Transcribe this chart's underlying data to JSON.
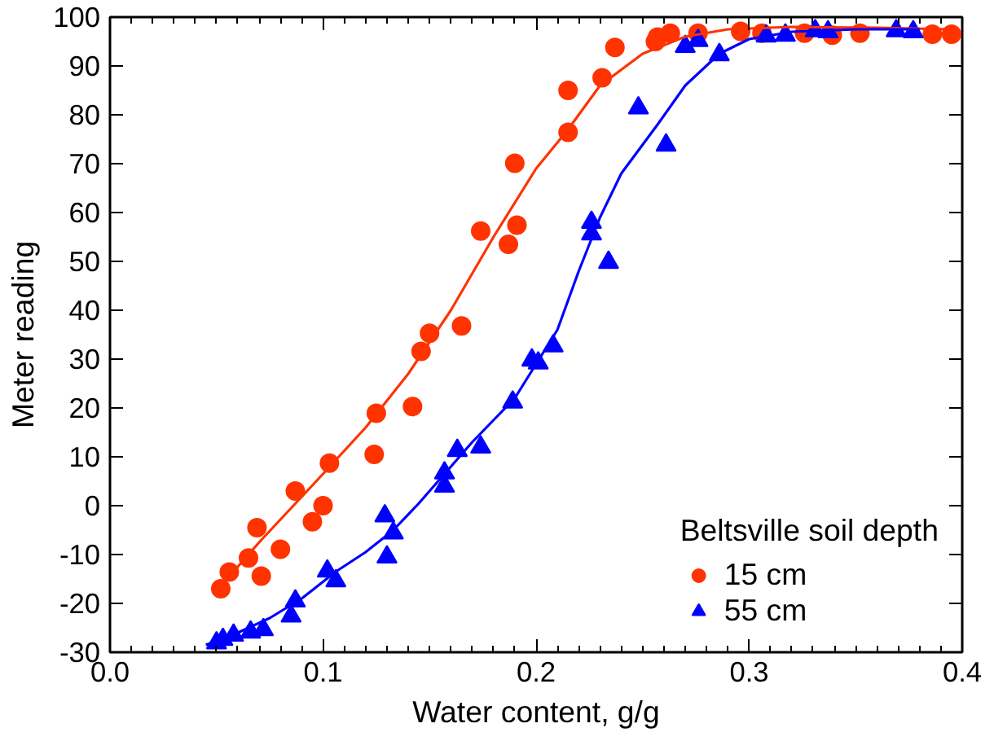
{
  "chart_data": {
    "type": "scatter",
    "xlabel": "Water content, g/g",
    "ylabel": "Meter reading",
    "legend_title": "Beltsville soil depth",
    "legend": "bottom right",
    "grid": false,
    "xlim": [
      0,
      0.4
    ],
    "ylim": [
      -30,
      100
    ],
    "xticks": [
      {
        "value": 0,
        "label": "0.0"
      },
      0.1,
      0.2,
      0.3,
      0.4
    ],
    "yticks": [
      -30,
      -20,
      -10,
      0,
      10,
      20,
      30,
      40,
      50,
      60,
      70,
      80,
      90,
      100
    ],
    "series": [
      {
        "name": "15 cm",
        "marker": "circle",
        "color": "#ff3300",
        "x": [
          0.052,
          0.056,
          0.065,
          0.069,
          0.071,
          0.08,
          0.087,
          0.095,
          0.1,
          0.103,
          0.124,
          0.125,
          0.142,
          0.146,
          0.15,
          0.165,
          0.174,
          0.187,
          0.191,
          0.19,
          0.215,
          0.215,
          0.231,
          0.237,
          0.256,
          0.257,
          0.263,
          0.276,
          0.296,
          0.306,
          0.326,
          0.339,
          0.352,
          0.386,
          0.395
        ],
        "values": [
          -17,
          -13.6,
          -10.7,
          -4.5,
          -14.4,
          -8.9,
          3.0,
          -3.3,
          0,
          8.7,
          10.5,
          18.9,
          20.3,
          31.6,
          35.3,
          36.8,
          56.2,
          53.5,
          57.4,
          70.1,
          76.4,
          85.0,
          87.6,
          93.8,
          95.0,
          95.9,
          96.7,
          96.7,
          97.1,
          96.7,
          96.7,
          96.3,
          96.7,
          96.5,
          96.5
        ]
      },
      {
        "name": "55 cm",
        "marker": "triangle",
        "color": "#0000ff",
        "x": [
          0.05,
          0.053,
          0.058,
          0.066,
          0.072,
          0.085,
          0.087,
          0.102,
          0.106,
          0.13,
          0.129,
          0.133,
          0.157,
          0.157,
          0.163,
          0.174,
          0.189,
          0.198,
          0.201,
          0.208,
          0.226,
          0.226,
          0.234,
          0.248,
          0.261,
          0.27,
          0.276,
          0.286,
          0.308,
          0.317,
          0.331,
          0.337,
          0.369,
          0.377
        ],
        "values": [
          -28.1,
          -27.4,
          -26.5,
          -25.9,
          -25.4,
          -22.6,
          -19.5,
          -13.4,
          -15.4,
          -10.5,
          -2.1,
          -5.6,
          4.0,
          6.7,
          11.3,
          12.0,
          21.2,
          29.8,
          29.2,
          32.7,
          58.0,
          55.6,
          49.8,
          81.4,
          73.8,
          94.0,
          95.2,
          92.3,
          96.1,
          96.3,
          97.2,
          97.0,
          97.2,
          97.0
        ]
      },
      {
        "type": "line",
        "line_style": "solid",
        "color": "#ff3300",
        "x": [
          0.055,
          0.07,
          0.085,
          0.1,
          0.12,
          0.14,
          0.16,
          0.18,
          0.2,
          0.215,
          0.23,
          0.25,
          0.27,
          0.29,
          0.32,
          0.36,
          0.395
        ],
        "values": [
          -15,
          -7.5,
          -0.5,
          6.5,
          16,
          27,
          40,
          55,
          69,
          77,
          86,
          92.5,
          96,
          97.5,
          98,
          97.8,
          97.5
        ]
      },
      {
        "type": "line",
        "line_style": "solid",
        "color": "#0000ff",
        "x": [
          0.045,
          0.06,
          0.075,
          0.09,
          0.106,
          0.12,
          0.133,
          0.145,
          0.157,
          0.17,
          0.18,
          0.19,
          0.2,
          0.21,
          0.22,
          0.23,
          0.24,
          0.257,
          0.27,
          0.286,
          0.3,
          0.32,
          0.35,
          0.38
        ],
        "values": [
          -28.5,
          -26,
          -23,
          -19,
          -13.5,
          -9.5,
          -5,
          0.5,
          6.5,
          13,
          17.5,
          22,
          29,
          36,
          48,
          59,
          68,
          78,
          86,
          92.5,
          95.5,
          97,
          97.5,
          97.5
        ]
      }
    ]
  }
}
